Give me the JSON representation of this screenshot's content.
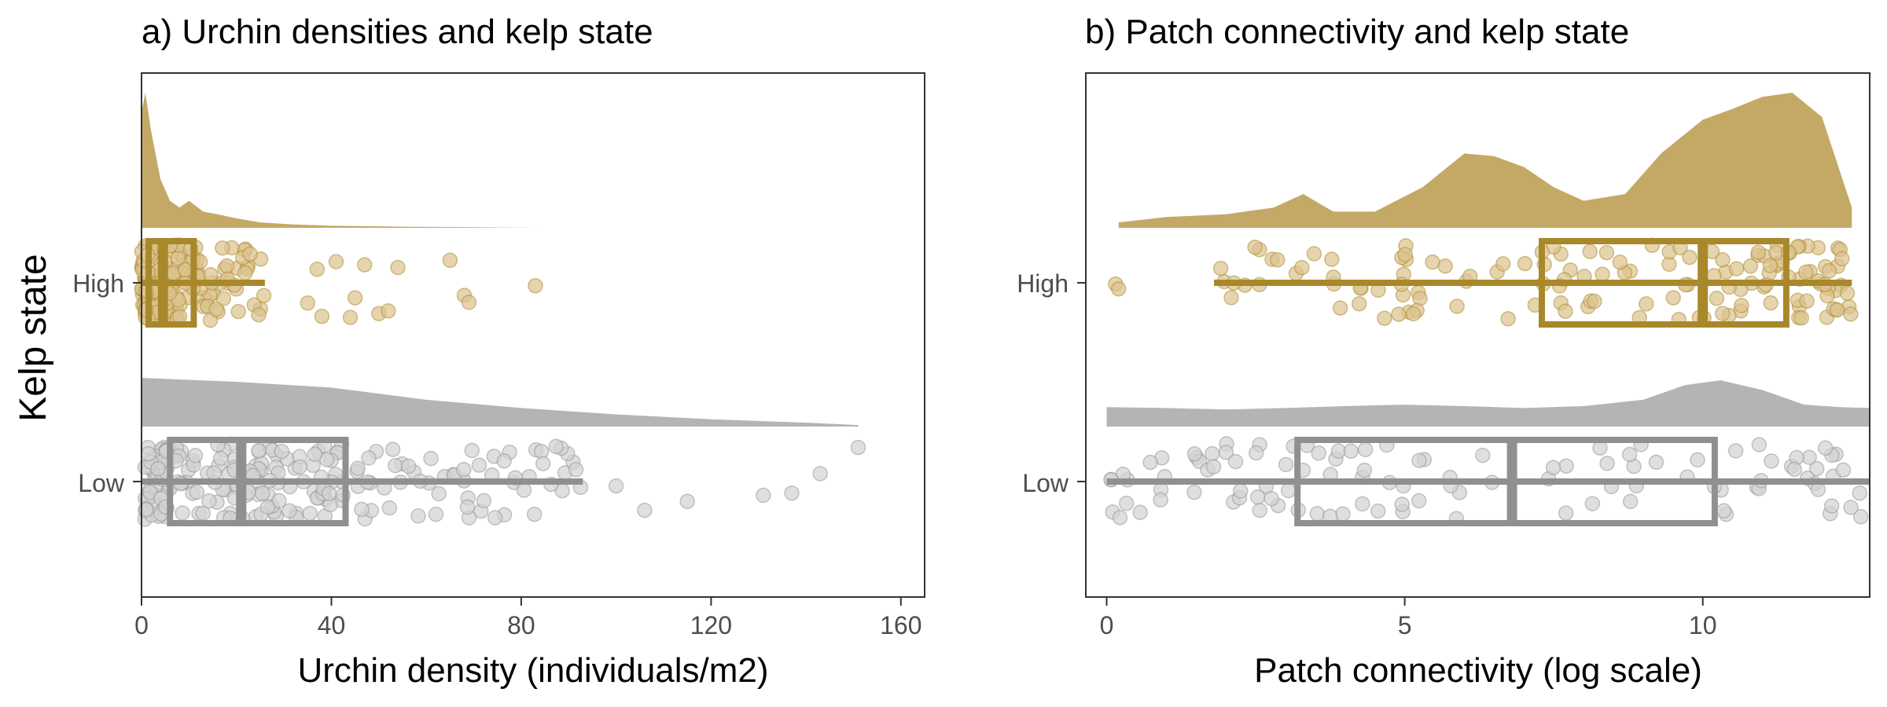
{
  "figure": {
    "y_axis_label": "Kelp state",
    "colors": {
      "high_fill": "#c4a865",
      "high_box": "#a8882a",
      "high_point": "#dcc48f",
      "low_fill": "#b4b4b4",
      "low_box": "#8e918f",
      "low_point": "#d3d3d3"
    }
  },
  "chart_data": [
    {
      "type": "raincloud",
      "title": "a) Urchin densities and kelp state",
      "xlabel": "Urchin density (individuals/m2)",
      "ylabel": "Kelp state",
      "categories": [
        "High",
        "Low"
      ],
      "xlim": [
        0,
        165
      ],
      "xticks": [
        0,
        40,
        80,
        120,
        160
      ],
      "grid": false,
      "series": [
        {
          "name": "High",
          "box": {
            "q1": 1.5,
            "median": 4.5,
            "q3": 11,
            "whisker_low": 0,
            "whisker_high": 26
          },
          "density": {
            "x": [
              0,
              0.8,
              2,
              4,
              6,
              8,
              10,
              13,
              16,
              20,
              25,
              32,
              40,
              55,
              70,
              84
            ],
            "y": [
              0.85,
              1.0,
              0.72,
              0.36,
              0.2,
              0.15,
              0.2,
              0.12,
              0.1,
              0.07,
              0.04,
              0.025,
              0.015,
              0.008,
              0.004,
              0.0
            ]
          },
          "outliers": [
            35,
            37,
            38,
            41,
            44,
            45,
            47,
            50,
            52,
            54,
            65,
            68,
            69,
            83
          ]
        },
        {
          "name": "Low",
          "box": {
            "q1": 6,
            "median": 21,
            "q3": 43,
            "whisker_low": 0,
            "whisker_high": 93
          },
          "density": {
            "x": [
              0,
              20,
              40,
              60,
              80,
              100,
              120,
              140,
              151
            ],
            "y": [
              1.0,
              0.92,
              0.8,
              0.55,
              0.38,
              0.25,
              0.15,
              0.08,
              0.03
            ]
          },
          "outliers": [
            100,
            106,
            115,
            131,
            137,
            143,
            151
          ]
        }
      ]
    },
    {
      "type": "raincloud",
      "title": "b) Patch connectivity and kelp state",
      "xlabel": "Patch connectivity (log scale)",
      "ylabel": "Kelp state",
      "categories": [
        "High",
        "Low"
      ],
      "xlim": [
        -0.35,
        12.8
      ],
      "xticks": [
        0,
        5,
        10
      ],
      "grid": false,
      "series": [
        {
          "name": "High",
          "box": {
            "q1": 7.3,
            "median": 10,
            "q3": 11.4,
            "whisker_low": 1.8,
            "whisker_high": 12.5
          },
          "density": {
            "x": [
              0.2,
              1,
              2,
              2.8,
              3.3,
              3.8,
              4.5,
              5.3,
              6,
              6.5,
              7,
              7.5,
              8,
              8.7,
              9.3,
              10,
              10.5,
              11,
              11.5,
              12,
              12.5
            ],
            "y": [
              0.04,
              0.08,
              0.1,
              0.15,
              0.25,
              0.12,
              0.12,
              0.3,
              0.55,
              0.53,
              0.45,
              0.3,
              0.2,
              0.25,
              0.55,
              0.8,
              0.88,
              0.97,
              1.0,
              0.82,
              0.15
            ]
          },
          "outliers": [
            0.15,
            0.2
          ]
        },
        {
          "name": "Low",
          "box": {
            "q1": 3.2,
            "median": 6.8,
            "q3": 10.2,
            "whisker_low": 0,
            "whisker_high": 12.8
          },
          "density": {
            "x": [
              0,
              1,
              2,
              3,
              4,
              5,
              6,
              7,
              8,
              9,
              9.7,
              10.3,
              11,
              11.7,
              12.3,
              12.8
            ],
            "y": [
              0.4,
              0.38,
              0.35,
              0.38,
              0.42,
              0.45,
              0.42,
              0.38,
              0.42,
              0.55,
              0.85,
              0.95,
              0.75,
              0.45,
              0.4,
              0.38
            ]
          },
          "outliers": []
        }
      ]
    }
  ]
}
